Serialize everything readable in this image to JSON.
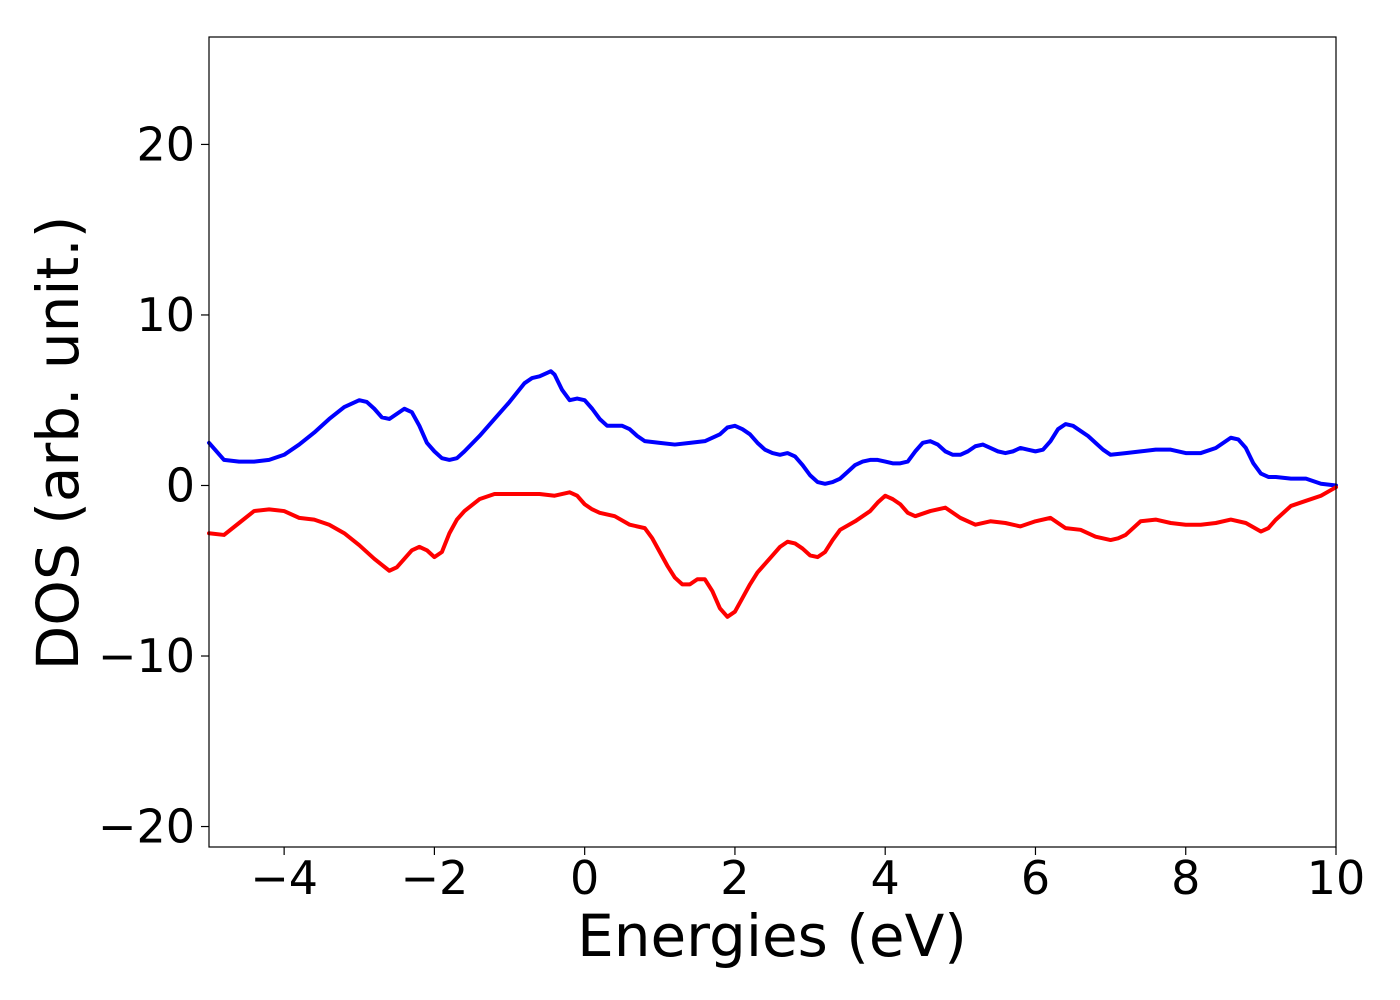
{
  "chart_data": {
    "type": "line",
    "title": "",
    "xlabel": "Energies (eV)",
    "ylabel": "DOS (arb. unit.)",
    "xlim": [
      -5,
      10
    ],
    "ylim": [
      -21.2,
      26.3
    ],
    "xticks": [
      -4,
      -2,
      0,
      2,
      4,
      6,
      8,
      10
    ],
    "yticks": [
      -20,
      -10,
      0,
      10,
      20
    ],
    "xtick_labels": [
      "−4",
      "−2",
      "0",
      "2",
      "4",
      "6",
      "8",
      "10"
    ],
    "ytick_labels": [
      "−20",
      "−10",
      "0",
      "10",
      "20"
    ],
    "grid": false,
    "legend": "none",
    "series": [
      {
        "color": "#0000ff",
        "x": [
          -5.0,
          -4.8,
          -4.6,
          -4.4,
          -4.2,
          -4.0,
          -3.8,
          -3.6,
          -3.4,
          -3.2,
          -3.0,
          -2.9,
          -2.8,
          -2.7,
          -2.6,
          -2.5,
          -2.4,
          -2.3,
          -2.2,
          -2.1,
          -2.0,
          -1.9,
          -1.8,
          -1.7,
          -1.6,
          -1.4,
          -1.2,
          -1.0,
          -0.8,
          -0.7,
          -0.6,
          -0.5,
          -0.45,
          -0.4,
          -0.3,
          -0.2,
          -0.1,
          0.0,
          0.1,
          0.2,
          0.3,
          0.4,
          0.5,
          0.6,
          0.7,
          0.8,
          1.0,
          1.2,
          1.4,
          1.6,
          1.8,
          1.9,
          2.0,
          2.1,
          2.2,
          2.3,
          2.4,
          2.5,
          2.6,
          2.7,
          2.8,
          2.9,
          3.0,
          3.1,
          3.2,
          3.3,
          3.4,
          3.5,
          3.6,
          3.7,
          3.8,
          3.9,
          4.0,
          4.1,
          4.2,
          4.3,
          4.4,
          4.5,
          4.6,
          4.7,
          4.8,
          4.9,
          5.0,
          5.1,
          5.2,
          5.3,
          5.4,
          5.5,
          5.6,
          5.7,
          5.8,
          5.9,
          6.0,
          6.1,
          6.2,
          6.3,
          6.4,
          6.5,
          6.6,
          6.7,
          6.8,
          6.9,
          7.0,
          7.2,
          7.4,
          7.6,
          7.8,
          8.0,
          8.2,
          8.4,
          8.5,
          8.6,
          8.7,
          8.8,
          8.9,
          9.0,
          9.1,
          9.2,
          9.4,
          9.6,
          9.8,
          10.0
        ],
        "y": [
          2.5,
          1.5,
          1.4,
          1.4,
          1.5,
          1.8,
          2.4,
          3.1,
          3.9,
          4.6,
          5.0,
          4.9,
          4.5,
          4.0,
          3.9,
          4.2,
          4.5,
          4.3,
          3.5,
          2.5,
          2.0,
          1.6,
          1.5,
          1.6,
          2.0,
          2.9,
          3.9,
          4.9,
          6.0,
          6.3,
          6.4,
          6.6,
          6.7,
          6.5,
          5.6,
          5.0,
          5.1,
          5.0,
          4.5,
          3.9,
          3.5,
          3.5,
          3.5,
          3.3,
          2.9,
          2.6,
          2.5,
          2.4,
          2.5,
          2.6,
          3.0,
          3.4,
          3.5,
          3.3,
          3.0,
          2.5,
          2.1,
          1.9,
          1.8,
          1.9,
          1.7,
          1.2,
          0.6,
          0.2,
          0.1,
          0.2,
          0.4,
          0.8,
          1.2,
          1.4,
          1.5,
          1.5,
          1.4,
          1.3,
          1.3,
          1.4,
          2.0,
          2.5,
          2.6,
          2.4,
          2.0,
          1.8,
          1.8,
          2.0,
          2.3,
          2.4,
          2.2,
          2.0,
          1.9,
          2.0,
          2.2,
          2.1,
          2.0,
          2.1,
          2.6,
          3.3,
          3.6,
          3.5,
          3.2,
          2.9,
          2.5,
          2.1,
          1.8,
          1.9,
          2.0,
          2.1,
          2.1,
          1.9,
          1.9,
          2.2,
          2.5,
          2.8,
          2.7,
          2.2,
          1.3,
          0.7,
          0.5,
          0.5,
          0.4,
          0.4,
          0.1,
          0.0
        ]
      },
      {
        "color": "#ff0000",
        "x": [
          -5.0,
          -4.8,
          -4.6,
          -4.4,
          -4.2,
          -4.0,
          -3.8,
          -3.6,
          -3.4,
          -3.2,
          -3.0,
          -2.8,
          -2.6,
          -2.5,
          -2.4,
          -2.3,
          -2.2,
          -2.1,
          -2.0,
          -1.9,
          -1.8,
          -1.7,
          -1.6,
          -1.4,
          -1.2,
          -1.0,
          -0.8,
          -0.6,
          -0.4,
          -0.2,
          -0.1,
          0.0,
          0.1,
          0.2,
          0.4,
          0.6,
          0.8,
          0.9,
          1.0,
          1.1,
          1.2,
          1.3,
          1.4,
          1.5,
          1.6,
          1.7,
          1.8,
          1.9,
          2.0,
          2.1,
          2.2,
          2.3,
          2.4,
          2.5,
          2.6,
          2.7,
          2.8,
          2.9,
          3.0,
          3.1,
          3.2,
          3.3,
          3.4,
          3.6,
          3.8,
          3.9,
          4.0,
          4.1,
          4.2,
          4.3,
          4.4,
          4.6,
          4.8,
          5.0,
          5.2,
          5.4,
          5.6,
          5.8,
          6.0,
          6.2,
          6.4,
          6.6,
          6.8,
          7.0,
          7.1,
          7.2,
          7.4,
          7.6,
          7.8,
          8.0,
          8.2,
          8.4,
          8.6,
          8.8,
          9.0,
          9.1,
          9.2,
          9.4,
          9.6,
          9.8,
          10.0
        ],
        "y": [
          -2.8,
          -2.9,
          -2.2,
          -1.5,
          -1.4,
          -1.5,
          -1.9,
          -2.0,
          -2.3,
          -2.8,
          -3.5,
          -4.3,
          -5.0,
          -4.8,
          -4.3,
          -3.8,
          -3.6,
          -3.8,
          -4.2,
          -3.9,
          -2.8,
          -2.0,
          -1.5,
          -0.8,
          -0.5,
          -0.5,
          -0.5,
          -0.5,
          -0.6,
          -0.4,
          -0.6,
          -1.1,
          -1.4,
          -1.6,
          -1.8,
          -2.3,
          -2.5,
          -3.1,
          -3.9,
          -4.7,
          -5.4,
          -5.8,
          -5.8,
          -5.5,
          -5.5,
          -6.2,
          -7.2,
          -7.7,
          -7.4,
          -6.6,
          -5.8,
          -5.1,
          -4.6,
          -4.1,
          -3.6,
          -3.3,
          -3.4,
          -3.7,
          -4.1,
          -4.2,
          -3.9,
          -3.2,
          -2.6,
          -2.1,
          -1.5,
          -1.0,
          -0.6,
          -0.8,
          -1.1,
          -1.6,
          -1.8,
          -1.5,
          -1.3,
          -1.9,
          -2.3,
          -2.1,
          -2.2,
          -2.4,
          -2.1,
          -1.9,
          -2.5,
          -2.6,
          -3.0,
          -3.2,
          -3.1,
          -2.9,
          -2.1,
          -2.0,
          -2.2,
          -2.3,
          -2.3,
          -2.2,
          -2.0,
          -2.2,
          -2.7,
          -2.5,
          -2.0,
          -1.2,
          -0.9,
          -0.6,
          -0.1
        ]
      }
    ]
  }
}
